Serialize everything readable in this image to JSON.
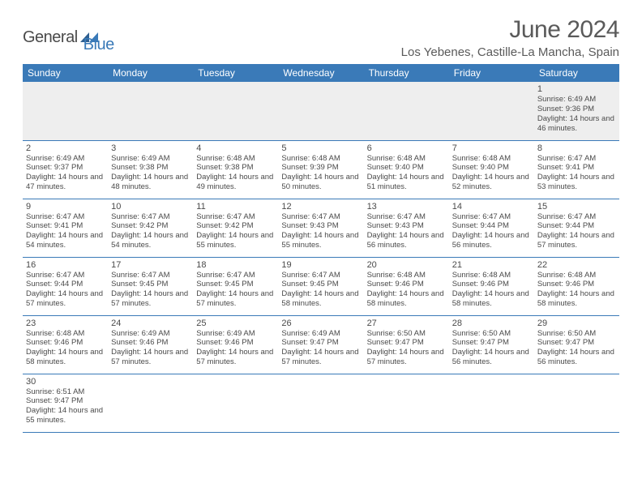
{
  "brand": {
    "part1": "General",
    "part2": "Blue"
  },
  "title": "June 2024",
  "location": "Los Yebenes, Castille-La Mancha, Spain",
  "colors": {
    "header_bg": "#3a7ab8",
    "header_text": "#ffffff",
    "border": "#3a7ab8",
    "first_row_bg": "#eeeeee",
    "text": "#4a4a4a",
    "brand_gray": "#4a4a4a",
    "brand_blue": "#3a7ab8",
    "page_bg": "#ffffff"
  },
  "typography": {
    "title_fontsize": 30,
    "location_fontsize": 15,
    "dayheader_fontsize": 12,
    "daynum_fontsize": 11,
    "detail_fontsize": 9.5,
    "logo_fontsize": 20
  },
  "day_names": [
    "Sunday",
    "Monday",
    "Tuesday",
    "Wednesday",
    "Thursday",
    "Friday",
    "Saturday"
  ],
  "weeks": [
    [
      null,
      null,
      null,
      null,
      null,
      null,
      {
        "n": "1",
        "sr": "Sunrise: 6:49 AM",
        "ss": "Sunset: 9:36 PM",
        "dl": "Daylight: 14 hours and 46 minutes."
      }
    ],
    [
      {
        "n": "2",
        "sr": "Sunrise: 6:49 AM",
        "ss": "Sunset: 9:37 PM",
        "dl": "Daylight: 14 hours and 47 minutes."
      },
      {
        "n": "3",
        "sr": "Sunrise: 6:49 AM",
        "ss": "Sunset: 9:38 PM",
        "dl": "Daylight: 14 hours and 48 minutes."
      },
      {
        "n": "4",
        "sr": "Sunrise: 6:48 AM",
        "ss": "Sunset: 9:38 PM",
        "dl": "Daylight: 14 hours and 49 minutes."
      },
      {
        "n": "5",
        "sr": "Sunrise: 6:48 AM",
        "ss": "Sunset: 9:39 PM",
        "dl": "Daylight: 14 hours and 50 minutes."
      },
      {
        "n": "6",
        "sr": "Sunrise: 6:48 AM",
        "ss": "Sunset: 9:40 PM",
        "dl": "Daylight: 14 hours and 51 minutes."
      },
      {
        "n": "7",
        "sr": "Sunrise: 6:48 AM",
        "ss": "Sunset: 9:40 PM",
        "dl": "Daylight: 14 hours and 52 minutes."
      },
      {
        "n": "8",
        "sr": "Sunrise: 6:47 AM",
        "ss": "Sunset: 9:41 PM",
        "dl": "Daylight: 14 hours and 53 minutes."
      }
    ],
    [
      {
        "n": "9",
        "sr": "Sunrise: 6:47 AM",
        "ss": "Sunset: 9:41 PM",
        "dl": "Daylight: 14 hours and 54 minutes."
      },
      {
        "n": "10",
        "sr": "Sunrise: 6:47 AM",
        "ss": "Sunset: 9:42 PM",
        "dl": "Daylight: 14 hours and 54 minutes."
      },
      {
        "n": "11",
        "sr": "Sunrise: 6:47 AM",
        "ss": "Sunset: 9:42 PM",
        "dl": "Daylight: 14 hours and 55 minutes."
      },
      {
        "n": "12",
        "sr": "Sunrise: 6:47 AM",
        "ss": "Sunset: 9:43 PM",
        "dl": "Daylight: 14 hours and 55 minutes."
      },
      {
        "n": "13",
        "sr": "Sunrise: 6:47 AM",
        "ss": "Sunset: 9:43 PM",
        "dl": "Daylight: 14 hours and 56 minutes."
      },
      {
        "n": "14",
        "sr": "Sunrise: 6:47 AM",
        "ss": "Sunset: 9:44 PM",
        "dl": "Daylight: 14 hours and 56 minutes."
      },
      {
        "n": "15",
        "sr": "Sunrise: 6:47 AM",
        "ss": "Sunset: 9:44 PM",
        "dl": "Daylight: 14 hours and 57 minutes."
      }
    ],
    [
      {
        "n": "16",
        "sr": "Sunrise: 6:47 AM",
        "ss": "Sunset: 9:44 PM",
        "dl": "Daylight: 14 hours and 57 minutes."
      },
      {
        "n": "17",
        "sr": "Sunrise: 6:47 AM",
        "ss": "Sunset: 9:45 PM",
        "dl": "Daylight: 14 hours and 57 minutes."
      },
      {
        "n": "18",
        "sr": "Sunrise: 6:47 AM",
        "ss": "Sunset: 9:45 PM",
        "dl": "Daylight: 14 hours and 57 minutes."
      },
      {
        "n": "19",
        "sr": "Sunrise: 6:47 AM",
        "ss": "Sunset: 9:45 PM",
        "dl": "Daylight: 14 hours and 58 minutes."
      },
      {
        "n": "20",
        "sr": "Sunrise: 6:48 AM",
        "ss": "Sunset: 9:46 PM",
        "dl": "Daylight: 14 hours and 58 minutes."
      },
      {
        "n": "21",
        "sr": "Sunrise: 6:48 AM",
        "ss": "Sunset: 9:46 PM",
        "dl": "Daylight: 14 hours and 58 minutes."
      },
      {
        "n": "22",
        "sr": "Sunrise: 6:48 AM",
        "ss": "Sunset: 9:46 PM",
        "dl": "Daylight: 14 hours and 58 minutes."
      }
    ],
    [
      {
        "n": "23",
        "sr": "Sunrise: 6:48 AM",
        "ss": "Sunset: 9:46 PM",
        "dl": "Daylight: 14 hours and 58 minutes."
      },
      {
        "n": "24",
        "sr": "Sunrise: 6:49 AM",
        "ss": "Sunset: 9:46 PM",
        "dl": "Daylight: 14 hours and 57 minutes."
      },
      {
        "n": "25",
        "sr": "Sunrise: 6:49 AM",
        "ss": "Sunset: 9:46 PM",
        "dl": "Daylight: 14 hours and 57 minutes."
      },
      {
        "n": "26",
        "sr": "Sunrise: 6:49 AM",
        "ss": "Sunset: 9:47 PM",
        "dl": "Daylight: 14 hours and 57 minutes."
      },
      {
        "n": "27",
        "sr": "Sunrise: 6:50 AM",
        "ss": "Sunset: 9:47 PM",
        "dl": "Daylight: 14 hours and 57 minutes."
      },
      {
        "n": "28",
        "sr": "Sunrise: 6:50 AM",
        "ss": "Sunset: 9:47 PM",
        "dl": "Daylight: 14 hours and 56 minutes."
      },
      {
        "n": "29",
        "sr": "Sunrise: 6:50 AM",
        "ss": "Sunset: 9:47 PM",
        "dl": "Daylight: 14 hours and 56 minutes."
      }
    ],
    [
      {
        "n": "30",
        "sr": "Sunrise: 6:51 AM",
        "ss": "Sunset: 9:47 PM",
        "dl": "Daylight: 14 hours and 55 minutes."
      },
      null,
      null,
      null,
      null,
      null,
      null
    ]
  ]
}
